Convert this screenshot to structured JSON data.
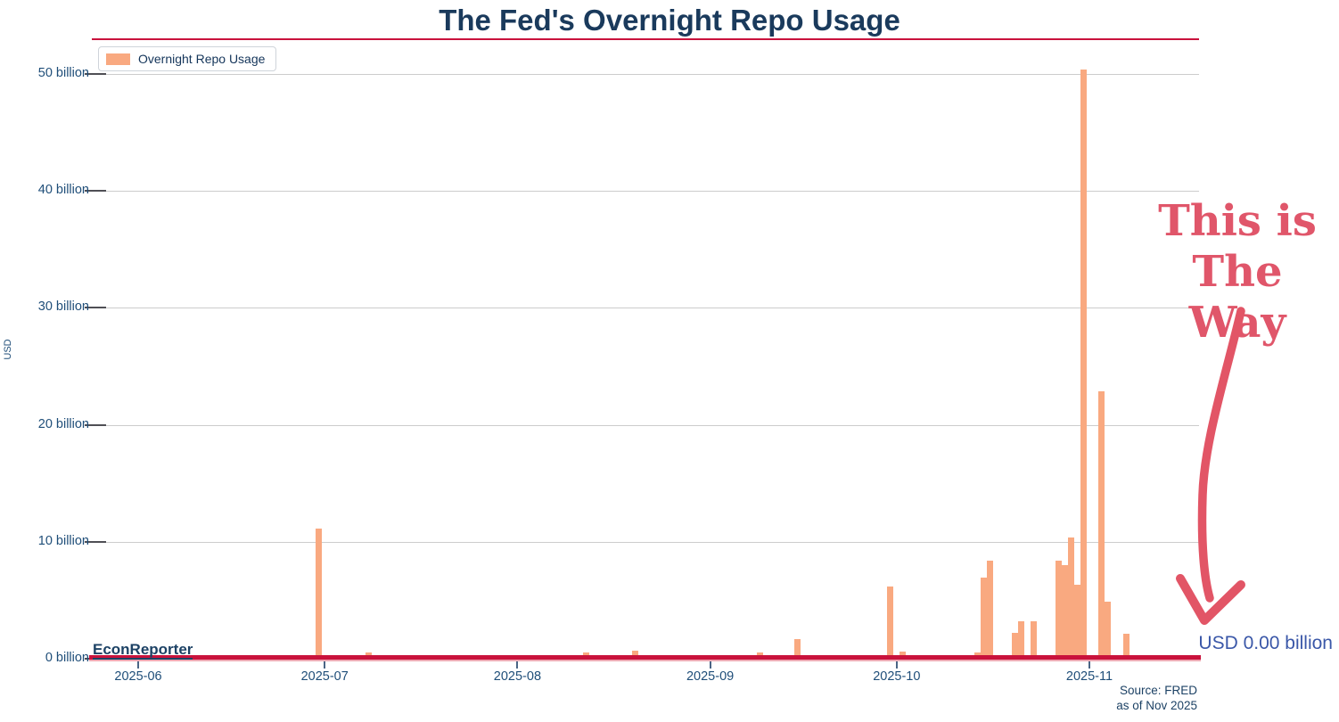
{
  "title": "The Fed's Overnight Repo Usage",
  "watermark": "EconReporter",
  "legend": {
    "label": "Overnight Repo Usage"
  },
  "annotation": {
    "line1": "This is",
    "line2": "The Way"
  },
  "latest_value_label": "USD 0.00 billion",
  "source": {
    "line1": "Source: FRED",
    "line2": "as of Nov 2025"
  },
  "y_axis": {
    "label": "USD",
    "ticks": [
      "0 billion",
      "10 billion",
      "20 billion",
      "30 billion",
      "40 billion",
      "50 billion"
    ]
  },
  "x_axis": {
    "ticks": [
      "2025-06",
      "2025-07",
      "2025-08",
      "2025-09",
      "2025-10",
      "2025-11"
    ]
  },
  "colors": {
    "bar": "#f9a980",
    "baseline_red": "#c9123c",
    "title_navy": "#1a3a5c",
    "axis_navy": "#1f4e79",
    "annotation_red": "#e0566a",
    "latest_value_blue": "#3a57a8",
    "gridline_gray": "#cccccc"
  },
  "chart_data": {
    "type": "bar",
    "title": "The Fed's Overnight Repo Usage",
    "xlabel": "",
    "ylabel": "USD",
    "unit": "billion USD",
    "ylim": [
      0,
      52
    ],
    "x_range": [
      "2025-05-25",
      "2025-11-19"
    ],
    "grid": "horizontal",
    "legend_position": "upper-left",
    "series_name": "Overnight Repo Usage",
    "points": [
      [
        "2025-06-30",
        11.1
      ],
      [
        "2025-07-08",
        0.5
      ],
      [
        "2025-08-12",
        0.5
      ],
      [
        "2025-08-20",
        0.7
      ],
      [
        "2025-09-09",
        0.5
      ],
      [
        "2025-09-15",
        1.7
      ],
      [
        "2025-09-30",
        6.2
      ],
      [
        "2025-10-02",
        0.6
      ],
      [
        "2025-10-06",
        0.3
      ],
      [
        "2025-10-14",
        0.5
      ],
      [
        "2025-10-15",
        6.9
      ],
      [
        "2025-10-16",
        8.4
      ],
      [
        "2025-10-20",
        2.2
      ],
      [
        "2025-10-21",
        3.2
      ],
      [
        "2025-10-23",
        3.2
      ],
      [
        "2025-10-27",
        8.4
      ],
      [
        "2025-10-28",
        8.0
      ],
      [
        "2025-10-29",
        10.4
      ],
      [
        "2025-10-30",
        6.3
      ],
      [
        "2025-10-31",
        50.4
      ],
      [
        "2025-11-03",
        22.9
      ],
      [
        "2025-11-04",
        4.9
      ],
      [
        "2025-11-07",
        2.1
      ]
    ],
    "latest_reading": "USD 0.00 billion"
  }
}
